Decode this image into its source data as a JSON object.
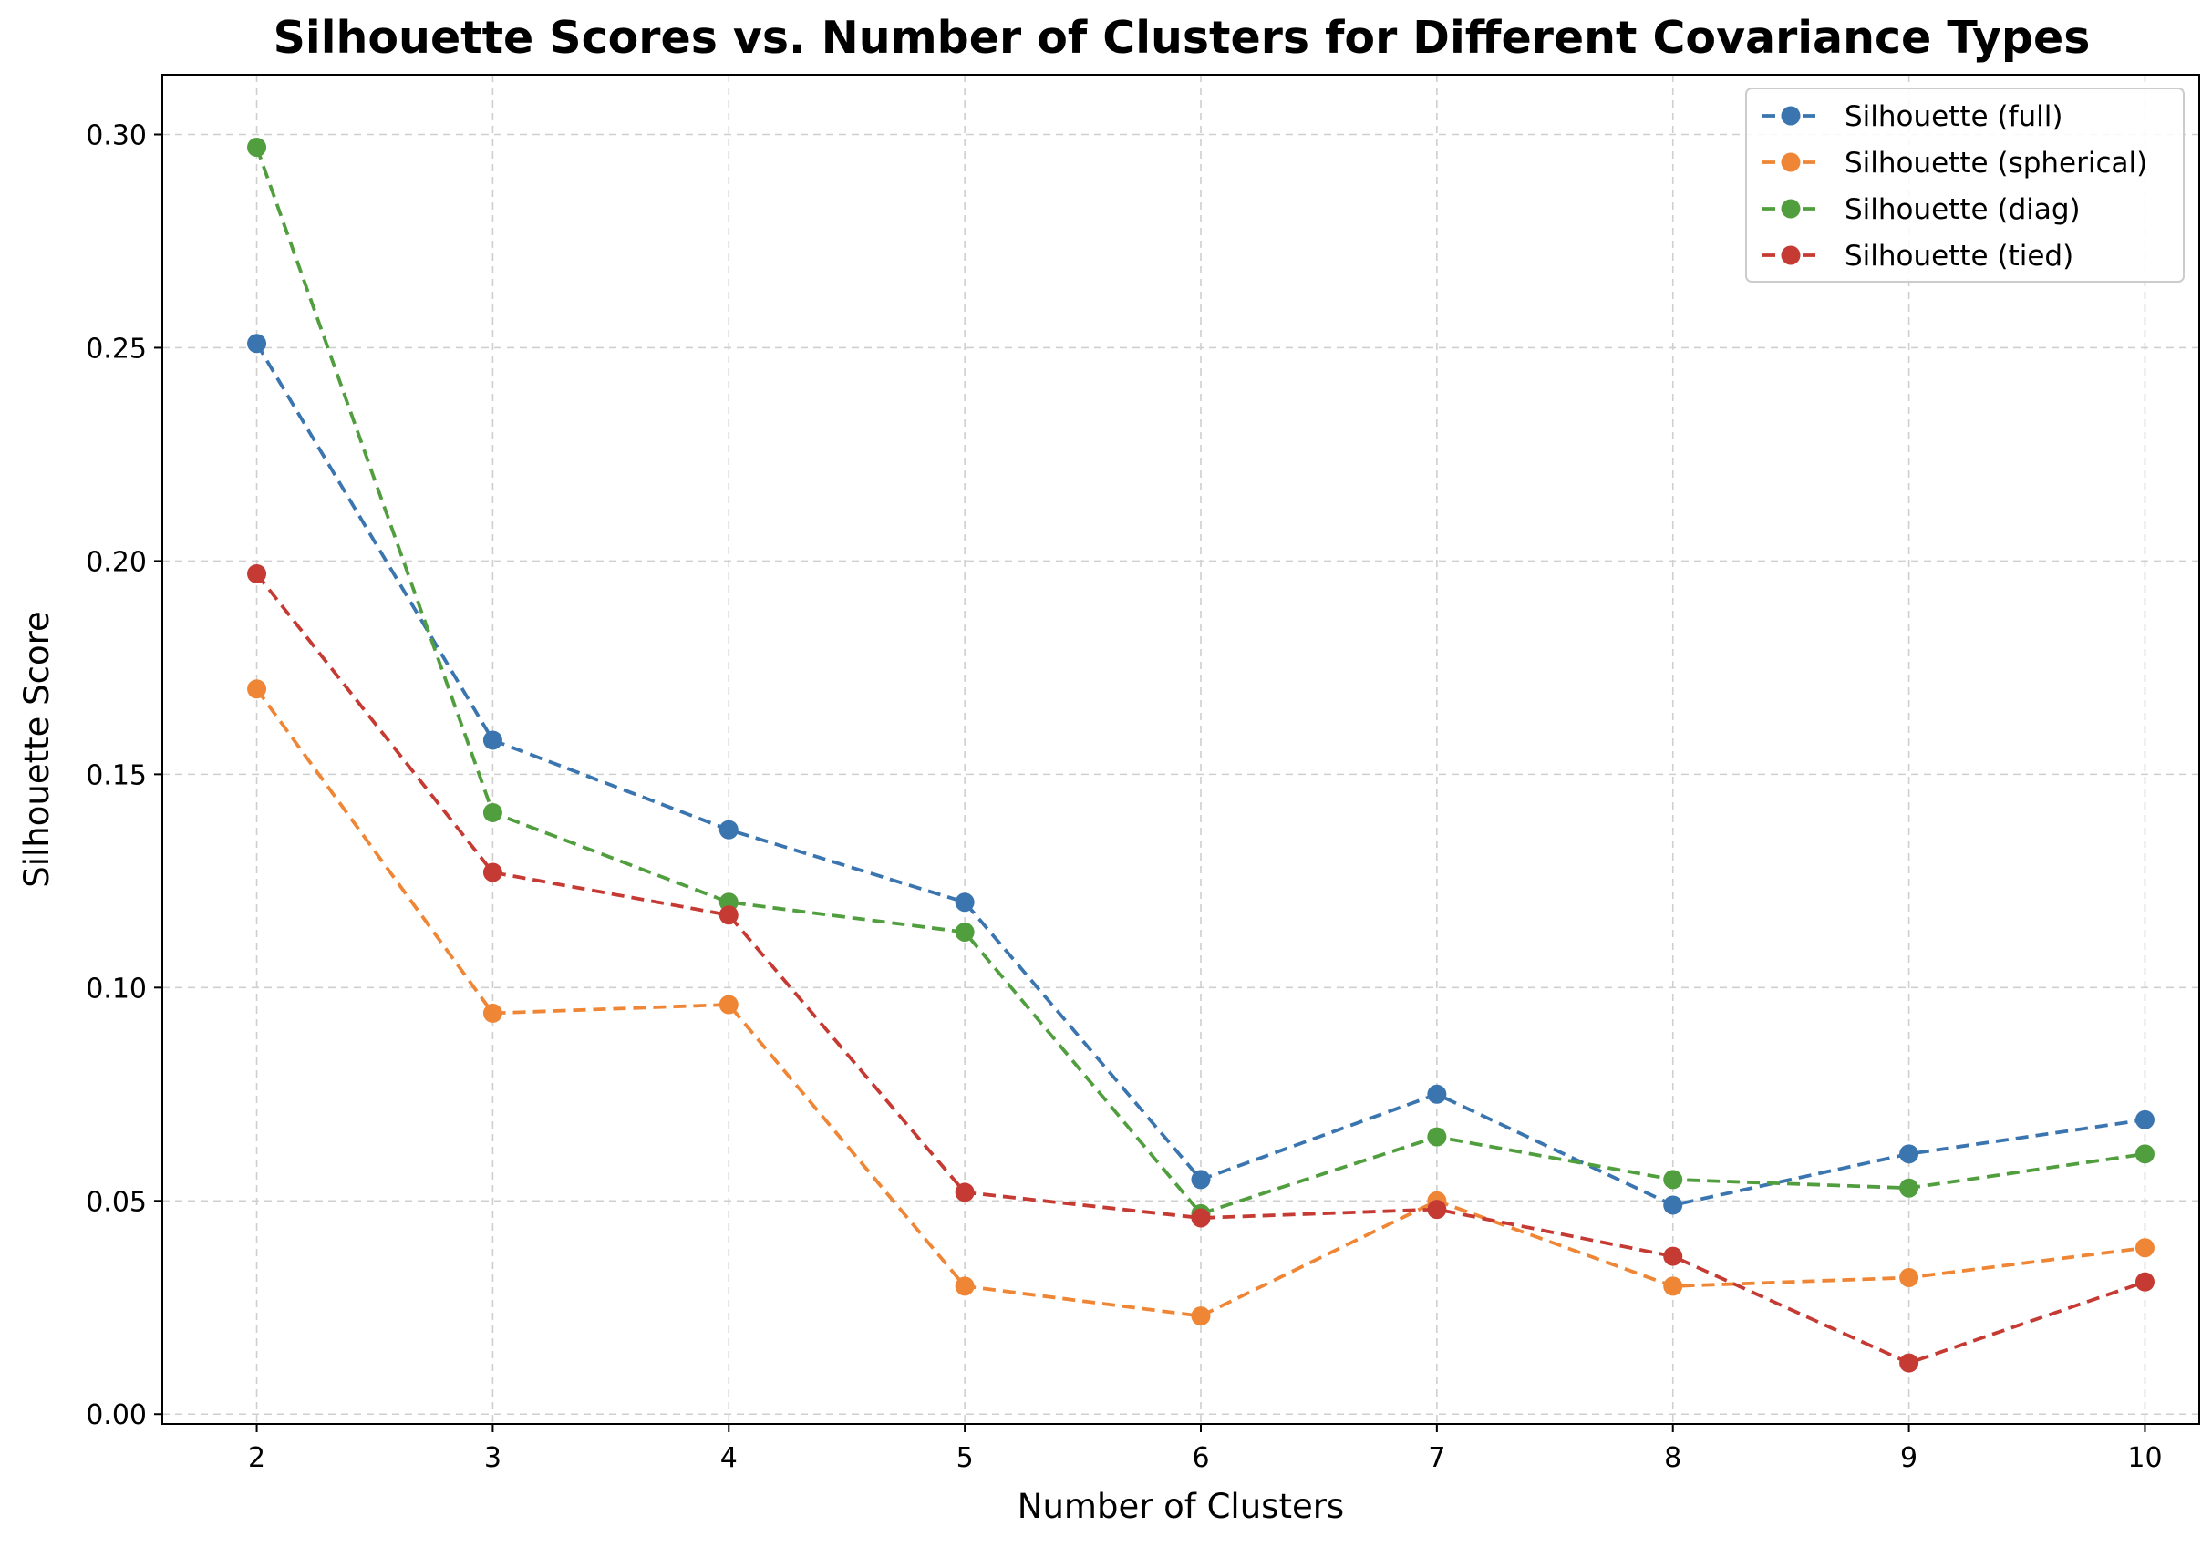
{
  "chart_data": {
    "type": "line",
    "title": "Silhouette Scores vs. Number of Clusters for Different Covariance Types",
    "xlabel": "Number of Clusters",
    "ylabel": "Silhouette Score",
    "x": [
      2,
      3,
      4,
      5,
      6,
      7,
      8,
      9,
      10
    ],
    "xticks": [
      "2",
      "3",
      "4",
      "5",
      "6",
      "7",
      "8",
      "9",
      "10"
    ],
    "xlim": [
      1.6,
      10.23
    ],
    "yticks": [
      "0.00",
      "0.05",
      "0.10",
      "0.15",
      "0.20",
      "0.25",
      "0.30"
    ],
    "ylim": [
      -0.0023,
      0.314
    ],
    "grid": true,
    "legend_position": "top-right",
    "line_style": "dashed",
    "marker": "circle",
    "series": [
      {
        "name": "Silhouette (full)",
        "color": "#3a75af",
        "values": [
          0.251,
          0.158,
          0.137,
          0.12,
          0.055,
          0.075,
          0.049,
          0.061,
          0.069
        ]
      },
      {
        "name": "Silhouette (spherical)",
        "color": "#ef8636",
        "values": [
          0.17,
          0.094,
          0.096,
          0.03,
          0.023,
          0.05,
          0.03,
          0.032,
          0.039
        ]
      },
      {
        "name": "Silhouette (diag)",
        "color": "#519e3e",
        "values": [
          0.297,
          0.141,
          0.12,
          0.113,
          0.047,
          0.065,
          0.055,
          0.053,
          0.061
        ]
      },
      {
        "name": "Silhouette (tied)",
        "color": "#c53a32",
        "values": [
          0.197,
          0.127,
          0.117,
          0.052,
          0.046,
          0.048,
          0.037,
          0.012,
          0.031
        ]
      }
    ]
  }
}
